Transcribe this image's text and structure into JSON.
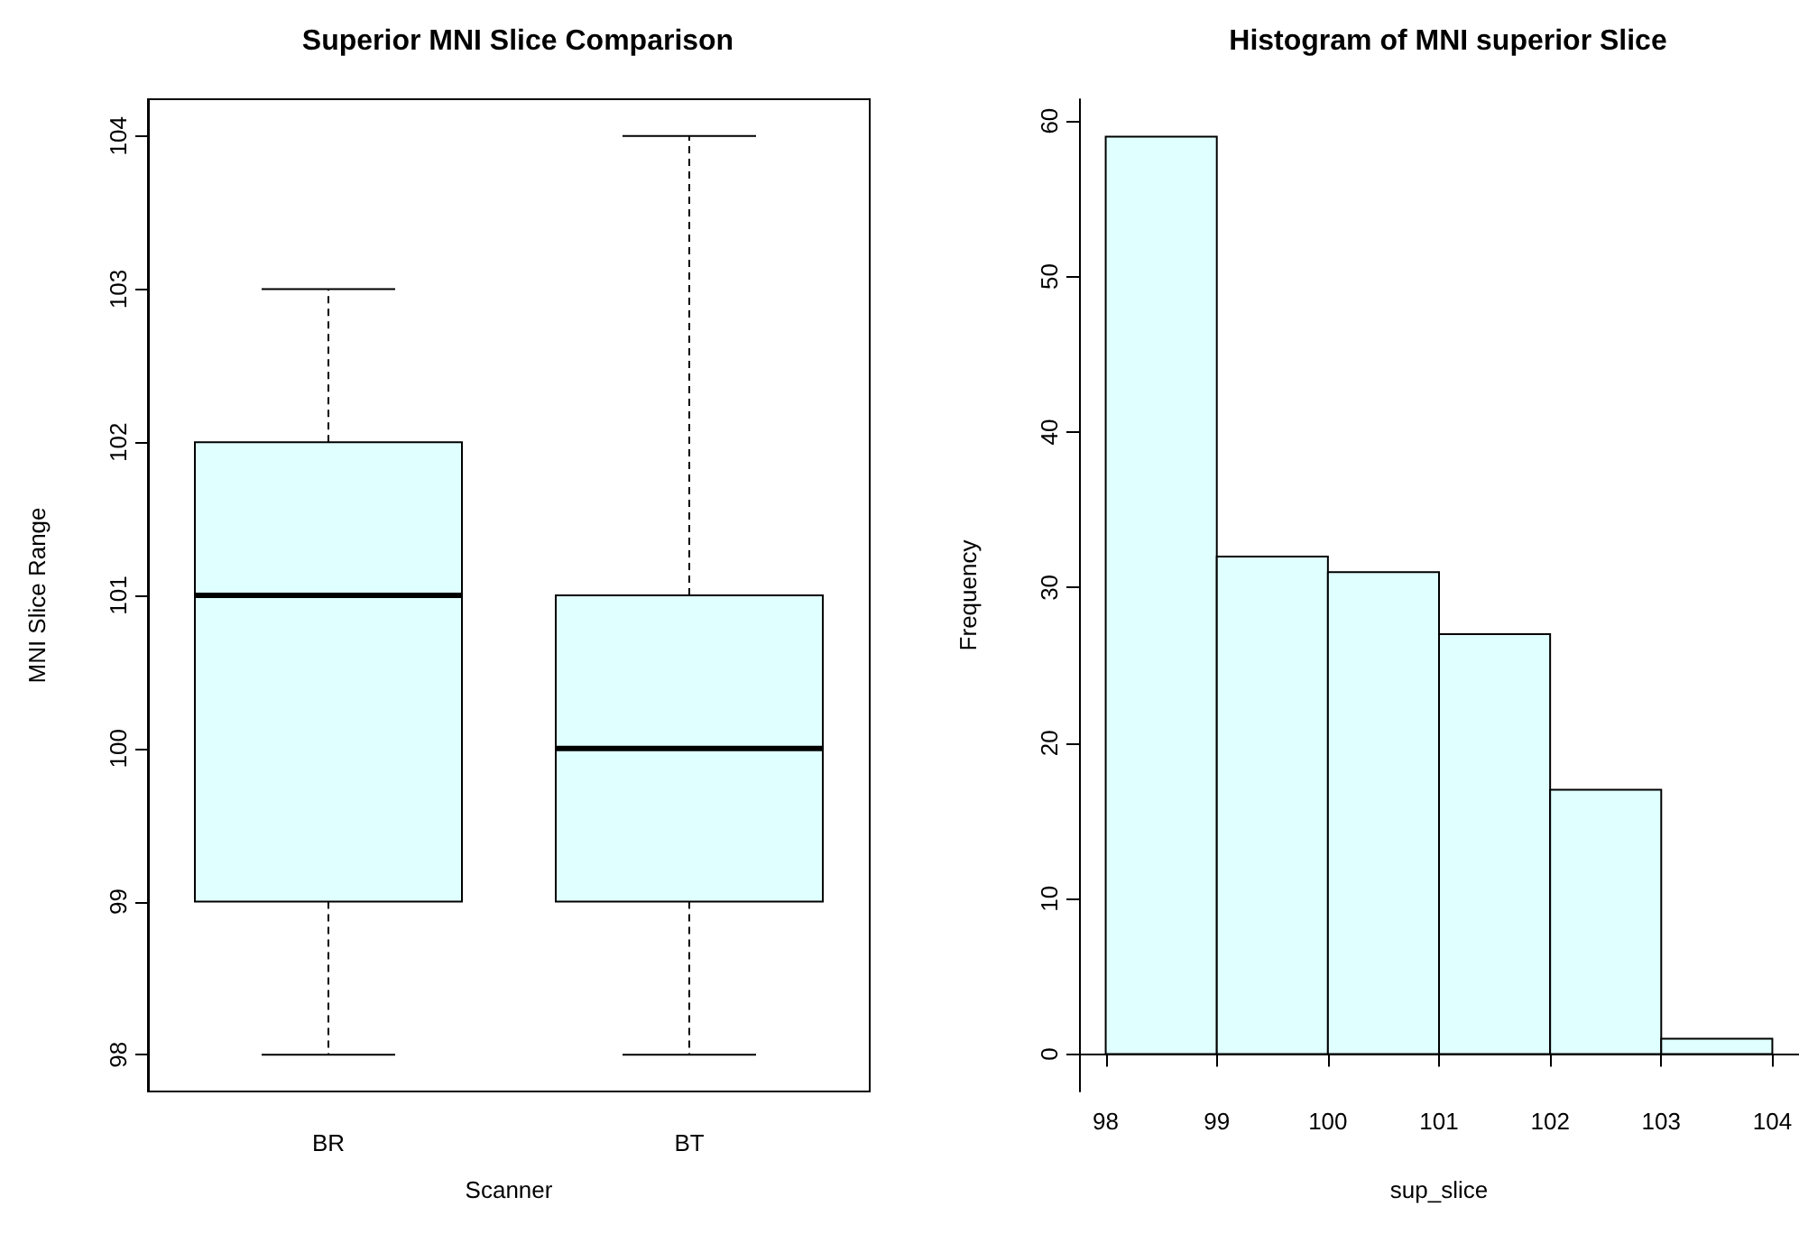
{
  "chart_data": [
    {
      "type": "box",
      "title": "Superior MNI Slice Comparison",
      "xlabel": "Scanner",
      "ylabel": "MNI Slice Range",
      "categories": [
        "BR",
        "BT"
      ],
      "color": "#e0ffff",
      "boxes": [
        {
          "low": 98,
          "q1": 99,
          "median": 101,
          "q3": 102,
          "high": 103
        },
        {
          "low": 98,
          "q1": 99,
          "median": 100,
          "q3": 101,
          "high": 104
        }
      ],
      "ylim": [
        97.76,
        104.24
      ],
      "yticks": [
        98,
        99,
        100,
        101,
        102,
        103,
        104
      ]
    },
    {
      "type": "histogram",
      "title": "Histogram of MNI superior Slice",
      "xlabel": "sup_slice",
      "ylabel": "Frequency",
      "color": "#e0ffff",
      "bins": [
        98,
        99,
        100,
        101,
        102,
        103,
        104
      ],
      "values": [
        59,
        32,
        31,
        27,
        17,
        1
      ],
      "xlim": [
        97.76,
        104.24
      ],
      "xticks": [
        98,
        99,
        100,
        101,
        102,
        103,
        104
      ],
      "ylim": [
        -2.4,
        61.4
      ],
      "yticks": [
        0,
        10,
        20,
        30,
        40,
        50,
        60
      ]
    }
  ]
}
